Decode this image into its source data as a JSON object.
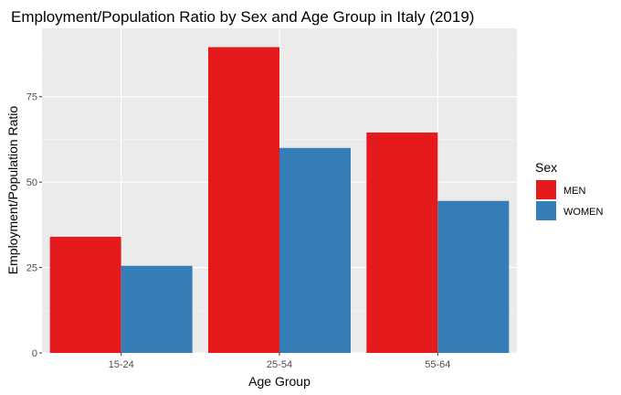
{
  "chart_data": {
    "type": "bar",
    "title": "Employment/Population Ratio by Sex and Age Group in Italy (2019)",
    "xlabel": "Age Group",
    "ylabel": "Employment/Population Ratio",
    "categories": [
      "15-24",
      "25-54",
      "55-64"
    ],
    "series": [
      {
        "name": "MEN",
        "values": [
          34,
          89.5,
          64.5
        ],
        "color": "#E41A1C"
      },
      {
        "name": "WOMEN",
        "values": [
          25.5,
          60,
          44.5
        ],
        "color": "#377EB8"
      }
    ],
    "ylim": [
      0,
      95
    ],
    "yticks": [
      0,
      25,
      50,
      75
    ],
    "grid": true,
    "legend": {
      "title": "Sex",
      "position": "right"
    },
    "colors": {
      "panel": "#EBEBEB",
      "grid_major": "#FFFFFF",
      "grid_minor": "#F5F5F5",
      "tick": "#333333"
    }
  }
}
